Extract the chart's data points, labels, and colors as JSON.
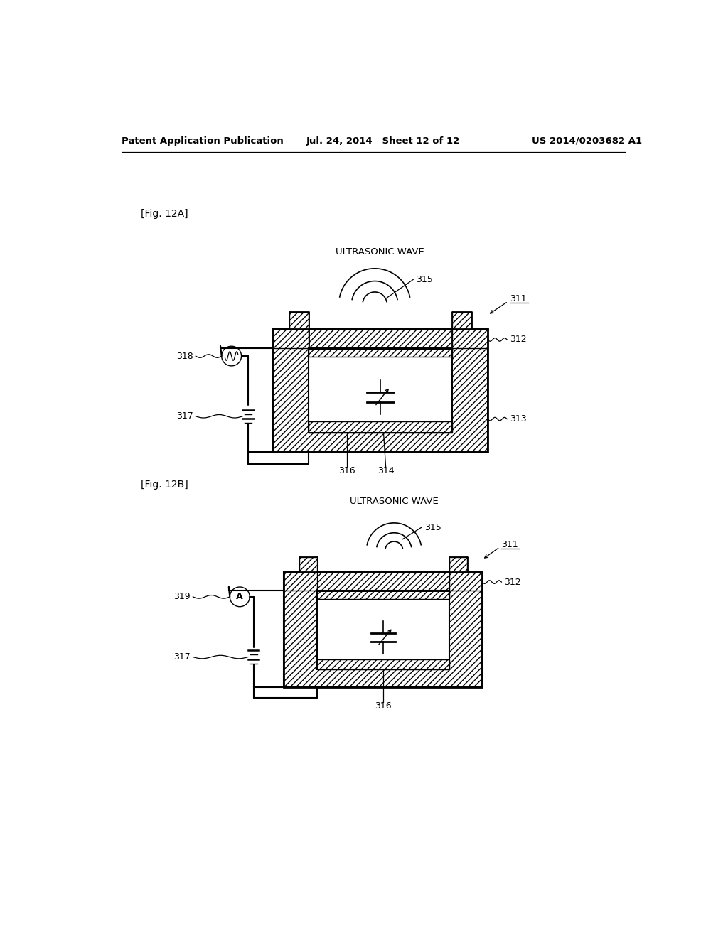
{
  "bg_color": "#ffffff",
  "header_left": "Patent Application Publication",
  "header_center": "Jul. 24, 2014   Sheet 12 of 12",
  "header_right": "US 2014/0203682 A1",
  "fig_label_A": "[Fig. 12A]",
  "fig_label_B": "[Fig. 12B]",
  "ultrasonic_wave": "ULTRASONIC WAVE"
}
